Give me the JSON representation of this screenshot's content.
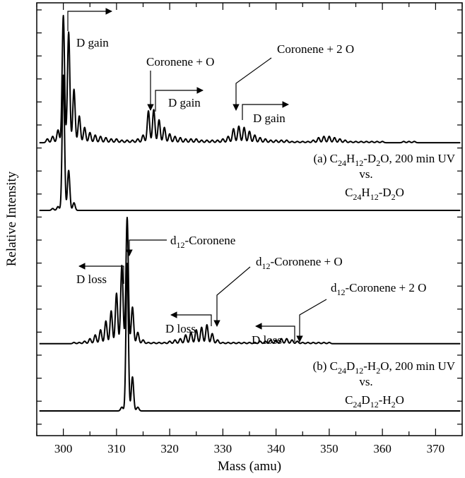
{
  "chart_data": {
    "type": "line",
    "xlabel": "Mass (amu)",
    "ylabel": "Relative Intensity",
    "xlim": [
      295,
      375
    ],
    "xticks": [
      300,
      310,
      320,
      330,
      340,
      350,
      360,
      370
    ],
    "grid": false,
    "panels": [
      {
        "id": "a",
        "label_lines": [
          "(a) C24H12-D2O, 200 min UV",
          "vs.",
          "C24H12-D2O"
        ],
        "irradiated": {
          "baseline": 1.0,
          "peaks": [
            {
              "x": 297,
              "y": 0.03
            },
            {
              "x": 298,
              "y": 0.05
            },
            {
              "x": 299,
              "y": 0.1
            },
            {
              "x": 300,
              "y": 1.0
            },
            {
              "x": 301,
              "y": 0.87
            },
            {
              "x": 302,
              "y": 0.42
            },
            {
              "x": 303,
              "y": 0.21
            },
            {
              "x": 304,
              "y": 0.12
            },
            {
              "x": 305,
              "y": 0.08
            },
            {
              "x": 306,
              "y": 0.06
            },
            {
              "x": 307,
              "y": 0.05
            },
            {
              "x": 308,
              "y": 0.04
            },
            {
              "x": 309,
              "y": 0.03
            },
            {
              "x": 310,
              "y": 0.03
            },
            {
              "x": 311,
              "y": 0.02
            },
            {
              "x": 312,
              "y": 0.02
            },
            {
              "x": 313,
              "y": 0.02
            },
            {
              "x": 314,
              "y": 0.03
            },
            {
              "x": 315,
              "y": 0.06
            },
            {
              "x": 316,
              "y": 0.25
            },
            {
              "x": 317,
              "y": 0.26
            },
            {
              "x": 318,
              "y": 0.18
            },
            {
              "x": 319,
              "y": 0.12
            },
            {
              "x": 320,
              "y": 0.07
            },
            {
              "x": 321,
              "y": 0.05
            },
            {
              "x": 322,
              "y": 0.04
            },
            {
              "x": 323,
              "y": 0.03
            },
            {
              "x": 324,
              "y": 0.03
            },
            {
              "x": 325,
              "y": 0.03
            },
            {
              "x": 326,
              "y": 0.02
            },
            {
              "x": 327,
              "y": 0.02
            },
            {
              "x": 328,
              "y": 0.02
            },
            {
              "x": 329,
              "y": 0.02
            },
            {
              "x": 330,
              "y": 0.03
            },
            {
              "x": 331,
              "y": 0.05
            },
            {
              "x": 332,
              "y": 0.11
            },
            {
              "x": 333,
              "y": 0.13
            },
            {
              "x": 334,
              "y": 0.12
            },
            {
              "x": 335,
              "y": 0.09
            },
            {
              "x": 336,
              "y": 0.06
            },
            {
              "x": 337,
              "y": 0.04
            },
            {
              "x": 338,
              "y": 0.03
            },
            {
              "x": 339,
              "y": 0.02
            },
            {
              "x": 340,
              "y": 0.02
            },
            {
              "x": 341,
              "y": 0.02
            },
            {
              "x": 342,
              "y": 0.02
            },
            {
              "x": 343,
              "y": 0.01
            },
            {
              "x": 344,
              "y": 0.01
            },
            {
              "x": 345,
              "y": 0.01
            },
            {
              "x": 346,
              "y": 0.01
            },
            {
              "x": 347,
              "y": 0.02
            },
            {
              "x": 348,
              "y": 0.04
            },
            {
              "x": 349,
              "y": 0.05
            },
            {
              "x": 350,
              "y": 0.05
            },
            {
              "x": 351,
              "y": 0.04
            },
            {
              "x": 352,
              "y": 0.03
            },
            {
              "x": 353,
              "y": 0.02
            },
            {
              "x": 354,
              "y": 0.01
            },
            {
              "x": 355,
              "y": 0.01
            },
            {
              "x": 356,
              "y": 0.01
            },
            {
              "x": 357,
              "y": 0.01
            },
            {
              "x": 358,
              "y": 0.01
            },
            {
              "x": 359,
              "y": 0.01
            },
            {
              "x": 360,
              "y": 0.01
            },
            {
              "x": 364,
              "y": 0.01
            },
            {
              "x": 365,
              "y": 0.01
            },
            {
              "x": 366,
              "y": 0.01
            }
          ]
        },
        "reference": {
          "baseline": 0.56,
          "peaks": [
            {
              "x": 298,
              "y": 0.01
            },
            {
              "x": 299,
              "y": 0.02
            },
            {
              "x": 300,
              "y": 0.71
            },
            {
              "x": 301,
              "y": 0.21
            },
            {
              "x": 302,
              "y": 0.04
            }
          ]
        },
        "annotations": [
          {
            "text": "D gain",
            "arrow": "right"
          },
          {
            "text": "Coronene + O",
            "arrow": "down"
          },
          {
            "text": "D gain",
            "arrow": "right"
          },
          {
            "text": "Coronene  + 2 O",
            "arrow": "down"
          },
          {
            "text": "D gain",
            "arrow": "right"
          }
        ]
      },
      {
        "id": "b",
        "label_lines": [
          "(b) C24D12-H2O, 200 min UV",
          "vs.",
          "C24D12-H2O"
        ],
        "irradiated": {
          "baseline": 1.0,
          "peaks": [
            {
              "x": 302,
              "y": 0.01
            },
            {
              "x": 303,
              "y": 0.01
            },
            {
              "x": 304,
              "y": 0.02
            },
            {
              "x": 305,
              "y": 0.04
            },
            {
              "x": 306,
              "y": 0.07
            },
            {
              "x": 307,
              "y": 0.11
            },
            {
              "x": 308,
              "y": 0.18
            },
            {
              "x": 309,
              "y": 0.26
            },
            {
              "x": 310,
              "y": 0.4
            },
            {
              "x": 311,
              "y": 0.62
            },
            {
              "x": 312,
              "y": 1.0
            },
            {
              "x": 313,
              "y": 0.29
            },
            {
              "x": 314,
              "y": 0.09
            },
            {
              "x": 315,
              "y": 0.03
            },
            {
              "x": 316,
              "y": 0.01
            },
            {
              "x": 317,
              "y": 0.01
            },
            {
              "x": 318,
              "y": 0.01
            },
            {
              "x": 319,
              "y": 0.01
            },
            {
              "x": 320,
              "y": 0.02
            },
            {
              "x": 321,
              "y": 0.03
            },
            {
              "x": 322,
              "y": 0.04
            },
            {
              "x": 323,
              "y": 0.07
            },
            {
              "x": 324,
              "y": 0.09
            },
            {
              "x": 325,
              "y": 0.11
            },
            {
              "x": 326,
              "y": 0.13
            },
            {
              "x": 327,
              "y": 0.15
            },
            {
              "x": 328,
              "y": 0.08
            },
            {
              "x": 329,
              "y": 0.03
            },
            {
              "x": 330,
              "y": 0.01
            },
            {
              "x": 331,
              "y": 0.01
            },
            {
              "x": 332,
              "y": 0.01
            },
            {
              "x": 333,
              "y": 0.01
            },
            {
              "x": 334,
              "y": 0.01
            },
            {
              "x": 335,
              "y": 0.01
            },
            {
              "x": 336,
              "y": 0.01
            },
            {
              "x": 337,
              "y": 0.02
            },
            {
              "x": 338,
              "y": 0.02
            },
            {
              "x": 339,
              "y": 0.03
            },
            {
              "x": 340,
              "y": 0.03
            },
            {
              "x": 341,
              "y": 0.04
            },
            {
              "x": 342,
              "y": 0.04
            },
            {
              "x": 343,
              "y": 0.03
            },
            {
              "x": 344,
              "y": 0.02
            },
            {
              "x": 345,
              "y": 0.01
            },
            {
              "x": 346,
              "y": 0.01
            },
            {
              "x": 347,
              "y": 0.01
            },
            {
              "x": 348,
              "y": 0.01
            },
            {
              "x": 349,
              "y": 0.01
            },
            {
              "x": 350,
              "y": 0.01
            }
          ]
        },
        "reference": {
          "baseline": 0.56,
          "peaks": [
            {
              "x": 311,
              "y": 0.02
            },
            {
              "x": 312,
              "y": 0.78
            },
            {
              "x": 313,
              "y": 0.18
            },
            {
              "x": 314,
              "y": 0.02
            }
          ]
        },
        "annotations": [
          {
            "text": "d12-Coronene",
            "arrow": "down"
          },
          {
            "text": "D loss",
            "arrow": "left"
          },
          {
            "text": "d12-Coronene + O",
            "arrow": "down"
          },
          {
            "text": "D loss",
            "arrow": "left"
          },
          {
            "text": "d12-Coronene + 2 O",
            "arrow": "down"
          },
          {
            "text": "D loss",
            "arrow": "left"
          }
        ]
      }
    ]
  }
}
